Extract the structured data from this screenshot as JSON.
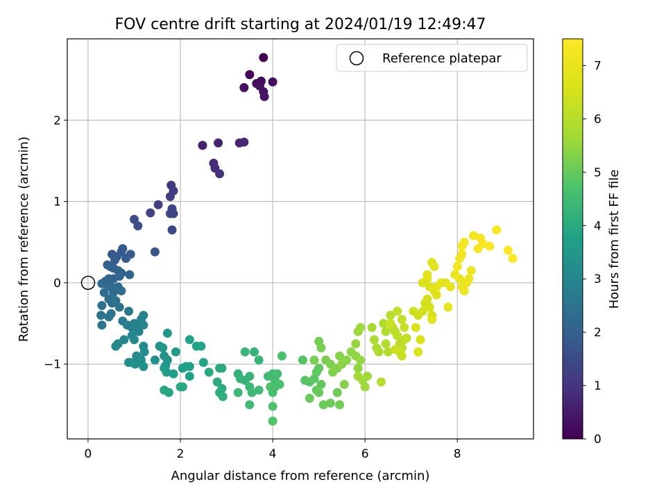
{
  "chart_data": {
    "type": "scatter",
    "title": "FOV centre drift starting at 2024/01/19 12:49:47",
    "xlabel": "Angular distance from reference (arcmin)",
    "ylabel": "Rotation from reference (arcmin)",
    "xlim": [
      -0.45,
      9.65
    ],
    "ylim": [
      -1.92,
      3.0
    ],
    "xticks": [
      0,
      2,
      4,
      6,
      8
    ],
    "xtick_labels": [
      "0",
      "2",
      "4",
      "6",
      "8"
    ],
    "yticks": [
      -1,
      0,
      1,
      2
    ],
    "ytick_labels": [
      "−1",
      "0",
      "1",
      "2"
    ],
    "grid": true,
    "legend": {
      "position": "top-right",
      "entries": [
        "Reference platepar"
      ]
    },
    "reference_point": {
      "x": 0,
      "y": 0,
      "label": "Reference platepar"
    },
    "colorbar": {
      "label": "Hours from first FF file",
      "range": [
        0,
        7.5
      ],
      "ticks": [
        0,
        1,
        2,
        3,
        4,
        5,
        6,
        7
      ],
      "tick_labels": [
        "0",
        "1",
        "2",
        "3",
        "4",
        "5",
        "6",
        "7"
      ],
      "colormap": "viridis"
    },
    "points": [
      [
        3.8,
        2.77,
        0.05
      ],
      [
        3.5,
        2.56,
        0.12
      ],
      [
        3.65,
        2.45,
        0.18
      ],
      [
        3.75,
        2.48,
        0.22
      ],
      [
        4.0,
        2.47,
        0.25
      ],
      [
        3.38,
        2.4,
        0.28
      ],
      [
        3.72,
        2.42,
        0.32
      ],
      [
        3.8,
        2.35,
        0.35
      ],
      [
        3.82,
        2.29,
        0.38
      ],
      [
        2.48,
        1.69,
        0.6
      ],
      [
        2.82,
        1.72,
        0.65
      ],
      [
        3.28,
        1.72,
        0.68
      ],
      [
        3.38,
        1.73,
        0.72
      ],
      [
        2.72,
        1.47,
        0.82
      ],
      [
        2.75,
        1.41,
        0.85
      ],
      [
        2.85,
        1.34,
        0.9
      ],
      [
        1.8,
        1.2,
        1.1
      ],
      [
        1.85,
        1.13,
        1.15
      ],
      [
        1.78,
        1.06,
        1.2
      ],
      [
        1.52,
        0.96,
        1.25
      ],
      [
        1.35,
        0.86,
        1.3
      ],
      [
        1.82,
        0.91,
        1.35
      ],
      [
        1.85,
        0.85,
        1.38
      ],
      [
        1.78,
        0.85,
        1.4
      ],
      [
        1.82,
        0.65,
        1.45
      ],
      [
        1.0,
        0.78,
        1.55
      ],
      [
        1.08,
        0.7,
        1.6
      ],
      [
        1.45,
        0.38,
        1.7
      ],
      [
        0.52,
        0.35,
        1.75
      ],
      [
        0.62,
        0.32,
        1.8
      ],
      [
        0.72,
        0.38,
        1.82
      ],
      [
        0.75,
        0.42,
        1.85
      ],
      [
        0.82,
        0.3,
        1.88
      ],
      [
        0.92,
        0.35,
        1.9
      ],
      [
        0.58,
        0.28,
        1.92
      ],
      [
        0.42,
        0.22,
        1.95
      ],
      [
        0.48,
        0.2,
        1.98
      ],
      [
        0.55,
        0.18,
        2.0
      ],
      [
        0.65,
        0.15,
        2.02
      ],
      [
        0.72,
        0.12,
        2.05
      ],
      [
        0.68,
        0.08,
        2.08
      ],
      [
        0.55,
        0.05,
        2.1
      ],
      [
        0.9,
        0.1,
        2.12
      ],
      [
        0.45,
        0.05,
        2.15
      ],
      [
        0.38,
        0.02,
        2.18
      ],
      [
        0.3,
        -0.01,
        2.2
      ],
      [
        0.42,
        -0.02,
        2.22
      ],
      [
        0.5,
        -0.05,
        2.25
      ],
      [
        0.65,
        -0.05,
        2.28
      ],
      [
        0.72,
        -0.1,
        2.3
      ],
      [
        0.55,
        -0.12,
        2.32
      ],
      [
        0.35,
        -0.12,
        2.35
      ],
      [
        0.45,
        -0.2,
        2.38
      ],
      [
        0.6,
        -0.22,
        2.4
      ],
      [
        0.52,
        -0.25,
        2.42
      ],
      [
        0.3,
        -0.28,
        2.45
      ],
      [
        0.68,
        -0.3,
        2.48
      ],
      [
        0.5,
        -0.38,
        2.5
      ],
      [
        0.28,
        -0.4,
        2.52
      ],
      [
        0.45,
        -0.42,
        2.55
      ],
      [
        0.3,
        -0.52,
        2.58
      ],
      [
        0.88,
        -0.35,
        2.6
      ],
      [
        0.75,
        -0.47,
        2.7
      ],
      [
        0.85,
        -0.52,
        2.75
      ],
      [
        0.95,
        -0.55,
        2.8
      ],
      [
        1.05,
        -0.52,
        2.85
      ],
      [
        1.15,
        -0.45,
        2.88
      ],
      [
        1.2,
        -0.4,
        2.9
      ],
      [
        1.0,
        -0.5,
        2.92
      ],
      [
        1.1,
        -0.6,
        2.95
      ],
      [
        1.2,
        -0.52,
        2.98
      ],
      [
        0.65,
        -0.75,
        3.0
      ],
      [
        0.78,
        -0.7,
        3.02
      ],
      [
        0.6,
        -0.78,
        3.05
      ],
      [
        0.95,
        -0.65,
        3.08
      ],
      [
        1.0,
        -0.7,
        3.1
      ],
      [
        1.2,
        -0.78,
        3.12
      ],
      [
        1.22,
        -0.85,
        3.15
      ],
      [
        1.05,
        -0.9,
        3.18
      ],
      [
        1.15,
        -0.95,
        3.2
      ],
      [
        0.92,
        -0.98,
        3.22
      ],
      [
        0.88,
        -0.98,
        3.25
      ],
      [
        1.02,
        -1.0,
        3.28
      ],
      [
        1.2,
        -1.03,
        3.3
      ],
      [
        1.45,
        -0.95,
        3.32
      ],
      [
        1.65,
        -0.9,
        3.35
      ],
      [
        1.72,
        -0.95,
        3.38
      ],
      [
        1.68,
        -1.02,
        3.4
      ],
      [
        1.55,
        -0.78,
        3.42
      ],
      [
        1.62,
        -0.8,
        3.45
      ],
      [
        1.72,
        -0.62,
        3.48
      ],
      [
        1.9,
        -0.85,
        3.55
      ],
      [
        1.7,
        -1.1,
        3.6
      ],
      [
        1.65,
        -1.05,
        3.62
      ],
      [
        1.85,
        -1.12,
        3.65
      ],
      [
        2.12,
        -1.03,
        3.68
      ],
      [
        2.05,
        -1.05,
        3.7
      ],
      [
        2.2,
        -1.03,
        3.72
      ],
      [
        2.2,
        -1.15,
        3.75
      ],
      [
        2.35,
        -0.78,
        3.78
      ],
      [
        2.45,
        -0.78,
        3.8
      ],
      [
        2.2,
        -0.7,
        3.82
      ],
      [
        2.5,
        -0.98,
        3.85
      ],
      [
        1.65,
        -1.32,
        3.88
      ],
      [
        1.75,
        -1.35,
        3.9
      ],
      [
        2.0,
        -1.28,
        3.92
      ],
      [
        2.05,
        -1.28,
        3.95
      ],
      [
        2.62,
        -1.1,
        3.98
      ],
      [
        2.85,
        -1.05,
        4.0
      ],
      [
        2.9,
        -1.05,
        4.02
      ],
      [
        2.8,
        -1.22,
        4.05
      ],
      [
        2.9,
        -1.3,
        4.08
      ],
      [
        2.92,
        -1.4,
        4.1
      ],
      [
        2.85,
        -1.35,
        4.12
      ],
      [
        3.25,
        -1.12,
        4.2
      ],
      [
        3.3,
        -1.18,
        4.22
      ],
      [
        3.4,
        -1.2,
        4.25
      ],
      [
        3.5,
        -1.15,
        4.28
      ],
      [
        3.4,
        -0.85,
        4.3
      ],
      [
        3.6,
        -0.85,
        4.32
      ],
      [
        3.7,
        -0.95,
        4.35
      ],
      [
        3.25,
        -1.35,
        4.38
      ],
      [
        3.5,
        -1.28,
        4.4
      ],
      [
        3.55,
        -1.35,
        4.42
      ],
      [
        3.7,
        -1.32,
        4.45
      ],
      [
        3.5,
        -1.5,
        4.48
      ],
      [
        3.9,
        -1.15,
        4.5
      ],
      [
        4.0,
        -1.12,
        4.52
      ],
      [
        4.1,
        -1.12,
        4.55
      ],
      [
        4.05,
        -1.2,
        4.58
      ],
      [
        4.0,
        -1.35,
        4.6
      ],
      [
        4.05,
        -1.28,
        4.62
      ],
      [
        4.15,
        -1.25,
        4.65
      ],
      [
        4.2,
        -0.9,
        4.68
      ],
      [
        3.95,
        -1.28,
        4.7
      ],
      [
        4.0,
        -1.52,
        4.72
      ],
      [
        4.0,
        -1.7,
        4.75
      ],
      [
        4.65,
        -0.95,
        4.8
      ],
      [
        4.7,
        -1.2,
        4.82
      ],
      [
        4.8,
        -1.22,
        4.85
      ],
      [
        4.9,
        -1.18,
        4.88
      ],
      [
        4.95,
        -1.1,
        4.9
      ],
      [
        5.0,
        -1.05,
        4.92
      ],
      [
        5.05,
        -1.25,
        4.95
      ],
      [
        4.95,
        -1.32,
        4.98
      ],
      [
        5.0,
        -1.35,
        5.0
      ],
      [
        4.8,
        -1.42,
        5.02
      ],
      [
        5.1,
        -1.5,
        5.05
      ],
      [
        5.25,
        -1.48,
        5.08
      ],
      [
        5.4,
        -1.35,
        5.1
      ],
      [
        5.45,
        -1.5,
        5.12
      ],
      [
        5.0,
        -0.72,
        5.15
      ],
      [
        5.05,
        -0.8,
        5.18
      ],
      [
        4.9,
        -0.95,
        5.2
      ],
      [
        5.15,
        -0.95,
        5.22
      ],
      [
        5.25,
        -1.0,
        5.25
      ],
      [
        5.3,
        -1.1,
        5.28
      ],
      [
        5.4,
        -1.05,
        5.3
      ],
      [
        5.55,
        -1.25,
        5.32
      ],
      [
        5.45,
        -0.9,
        5.35
      ],
      [
        5.5,
        -1.0,
        5.38
      ],
      [
        5.6,
        -0.95,
        5.4
      ],
      [
        5.7,
        -0.85,
        5.42
      ],
      [
        5.8,
        -0.9,
        5.45
      ],
      [
        5.85,
        -1.05,
        5.48
      ],
      [
        5.9,
        -0.95,
        5.5
      ],
      [
        5.8,
        -0.75,
        5.52
      ],
      [
        5.85,
        -0.6,
        5.55
      ],
      [
        5.9,
        -0.55,
        5.58
      ],
      [
        5.95,
        -1.2,
        5.6
      ],
      [
        6.0,
        -1.28,
        5.62
      ],
      [
        6.05,
        -1.15,
        5.65
      ],
      [
        5.85,
        -1.15,
        5.68
      ],
      [
        6.15,
        -0.55,
        5.75
      ],
      [
        6.2,
        -0.7,
        5.8
      ],
      [
        6.25,
        -0.8,
        5.82
      ],
      [
        6.3,
        -0.85,
        5.85
      ],
      [
        6.4,
        -0.5,
        5.88
      ],
      [
        6.45,
        -0.6,
        5.9
      ],
      [
        6.45,
        -0.75,
        5.92
      ],
      [
        6.5,
        -0.85,
        5.95
      ],
      [
        6.35,
        -1.22,
        5.98
      ],
      [
        6.55,
        -0.4,
        6.0
      ],
      [
        6.6,
        -0.55,
        6.02
      ],
      [
        6.65,
        -0.6,
        6.05
      ],
      [
        6.7,
        -0.65,
        6.08
      ],
      [
        6.75,
        -0.75,
        6.1
      ],
      [
        6.8,
        -0.8,
        6.12
      ],
      [
        6.85,
        -0.7,
        6.15
      ],
      [
        6.9,
        -0.68,
        6.18
      ],
      [
        6.7,
        -0.35,
        6.2
      ],
      [
        6.8,
        -0.45,
        6.22
      ],
      [
        6.85,
        -0.55,
        6.25
      ],
      [
        6.75,
        -0.85,
        6.28
      ],
      [
        6.8,
        -0.9,
        6.3
      ],
      [
        6.65,
        -0.82,
        6.32
      ],
      [
        6.55,
        -0.5,
        6.35
      ],
      [
        7.05,
        -0.35,
        6.4
      ],
      [
        7.15,
        -0.4,
        6.42
      ],
      [
        7.25,
        -0.35,
        6.45
      ],
      [
        7.3,
        -0.25,
        6.48
      ],
      [
        7.35,
        -0.2,
        6.5
      ],
      [
        7.4,
        -0.3,
        6.52
      ],
      [
        7.45,
        -0.4,
        6.55
      ],
      [
        7.1,
        -0.55,
        6.58
      ],
      [
        7.2,
        -0.7,
        6.6
      ],
      [
        7.15,
        -0.85,
        6.62
      ],
      [
        7.25,
        0.0,
        6.65
      ],
      [
        7.35,
        0.05,
        6.68
      ],
      [
        7.4,
        -0.05,
        6.7
      ],
      [
        7.5,
        -0.1,
        6.72
      ],
      [
        7.55,
        -0.15,
        6.75
      ],
      [
        7.45,
        0.25,
        6.78
      ],
      [
        7.5,
        0.2,
        6.8
      ],
      [
        7.35,
        0.1,
        6.82
      ],
      [
        7.45,
        -0.45,
        6.85
      ],
      [
        7.55,
        -0.05,
        6.88
      ],
      [
        7.65,
        0.0,
        6.9
      ],
      [
        7.75,
        0.0,
        6.92
      ],
      [
        7.85,
        -0.05,
        6.95
      ],
      [
        7.8,
        -0.3,
        6.98
      ],
      [
        7.95,
        0.1,
        7.0
      ],
      [
        8.05,
        0.05,
        7.02
      ],
      [
        8.1,
        -0.05,
        7.05
      ],
      [
        8.15,
        -0.1,
        7.08
      ],
      [
        8.2,
        0.0,
        7.1
      ],
      [
        8.25,
        0.05,
        7.12
      ],
      [
        8.3,
        0.15,
        7.15
      ],
      [
        8.05,
        0.3,
        7.18
      ],
      [
        8.1,
        0.35,
        7.2
      ],
      [
        8.0,
        0.2,
        7.22
      ],
      [
        8.1,
        0.45,
        7.25
      ],
      [
        8.15,
        0.5,
        7.28
      ],
      [
        8.35,
        0.58,
        7.3
      ],
      [
        8.5,
        0.55,
        7.32
      ],
      [
        8.55,
        0.48,
        7.35
      ],
      [
        8.45,
        0.42,
        7.38
      ],
      [
        8.7,
        0.45,
        7.4
      ],
      [
        8.85,
        0.65,
        7.42
      ],
      [
        9.1,
        0.4,
        7.45
      ],
      [
        9.2,
        0.3,
        7.48
      ]
    ]
  }
}
